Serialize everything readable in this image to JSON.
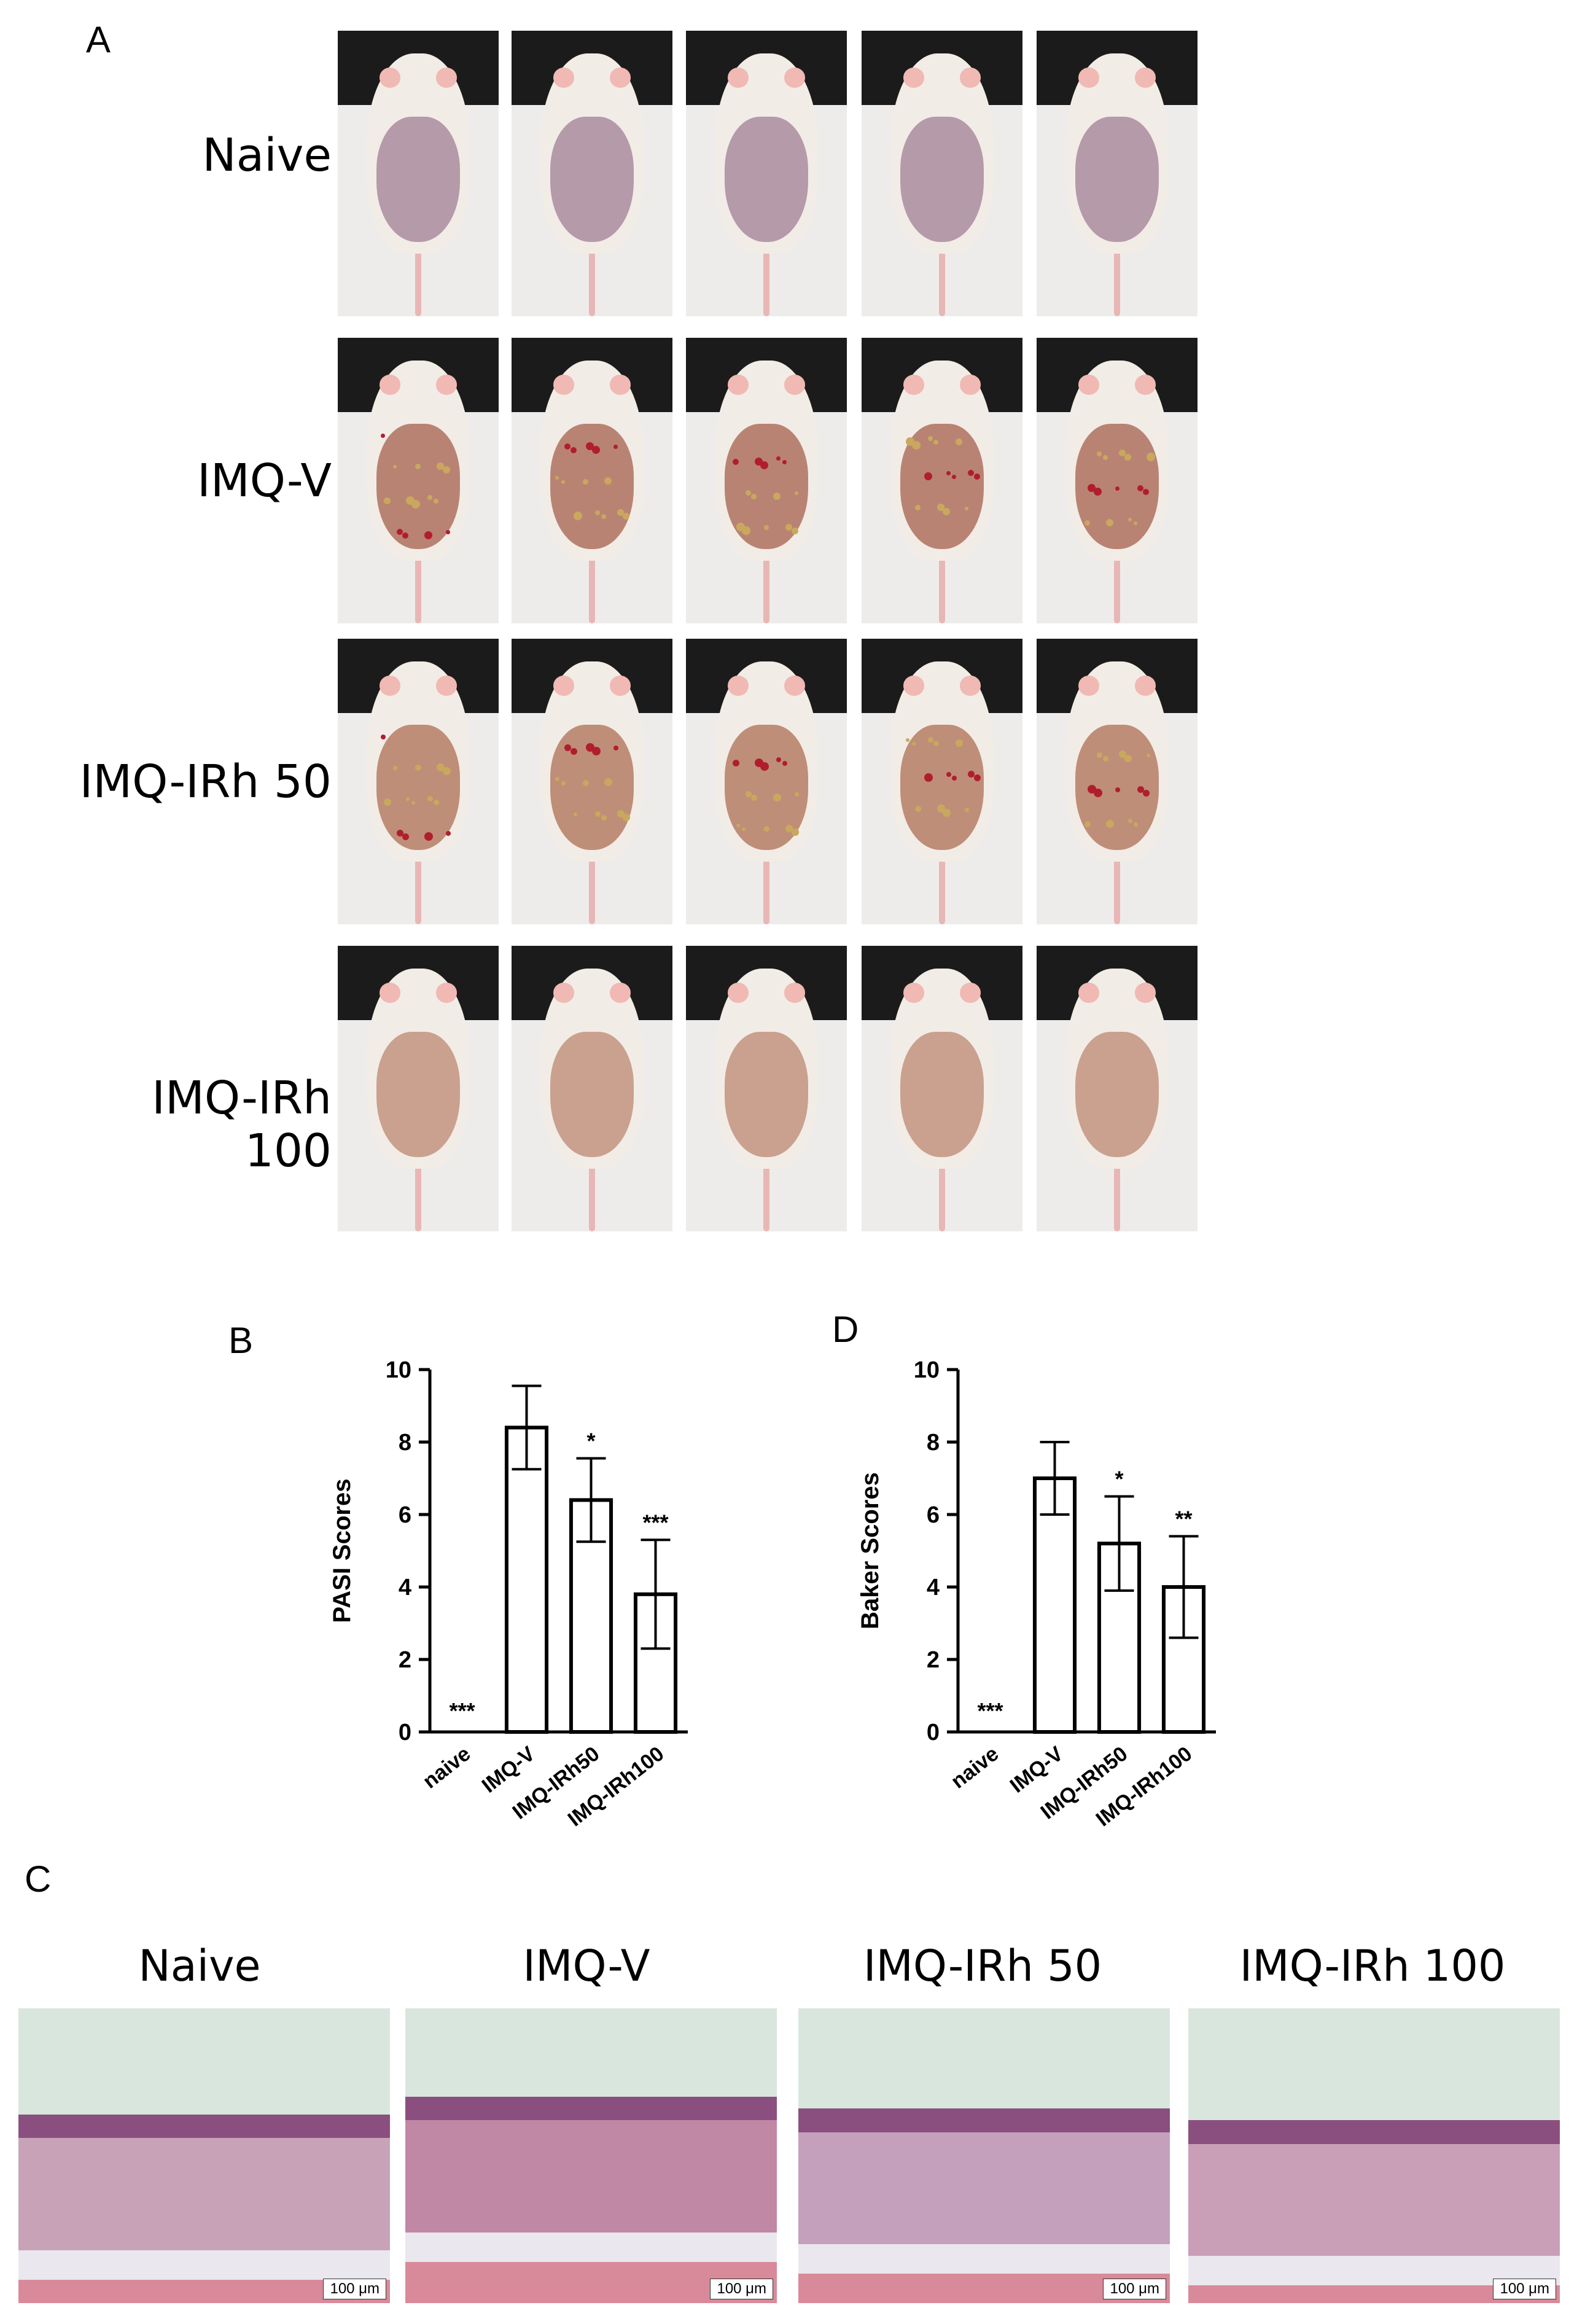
{
  "panels": {
    "a": "A",
    "b": "B",
    "c": "C",
    "d": "D"
  },
  "photo_rows": [
    {
      "label": "Naive",
      "skin": "#b59aaa",
      "lesions": false
    },
    {
      "label": "IMQ-V",
      "skin": "#b98373",
      "lesions": true
    },
    {
      "label": "IMQ-IRh 50",
      "skin": "#bf8e78",
      "lesions": true
    },
    {
      "label": "IMQ-IRh 100",
      "skin": "#caa08f",
      "lesions": false
    }
  ],
  "histology": {
    "labels": [
      "Naive",
      "IMQ-V",
      "IMQ-IRh 50",
      "IMQ-IRh 100"
    ],
    "scale_bar": "100 μm"
  },
  "chart_data": [
    {
      "type": "bar",
      "panel": "B",
      "categories": [
        "naive",
        "IMQ-V",
        "IMQ-IRh50",
        "IMQ-IRh100"
      ],
      "values": [
        0,
        8.4,
        6.4,
        3.8
      ],
      "errors": [
        0,
        1.15,
        1.15,
        1.5
      ],
      "significance": [
        "***",
        "",
        "*",
        "***"
      ],
      "ylabel": "PASI Scores",
      "ylim": [
        0,
        10
      ],
      "yticks": [
        "0",
        "2",
        "4",
        "6",
        "8",
        "10"
      ]
    },
    {
      "type": "bar",
      "panel": "D",
      "categories": [
        "naive",
        "IMQ-V",
        "IMQ-IRh50",
        "IMQ-IRh100"
      ],
      "values": [
        0,
        7.0,
        5.2,
        4.0
      ],
      "errors": [
        0,
        1.0,
        1.3,
        1.4
      ],
      "significance": [
        "***",
        "",
        "*",
        "**"
      ],
      "ylabel": "Baker Scores",
      "ylim": [
        0,
        10
      ],
      "yticks": [
        "0",
        "2",
        "4",
        "6",
        "8",
        "10"
      ]
    }
  ]
}
